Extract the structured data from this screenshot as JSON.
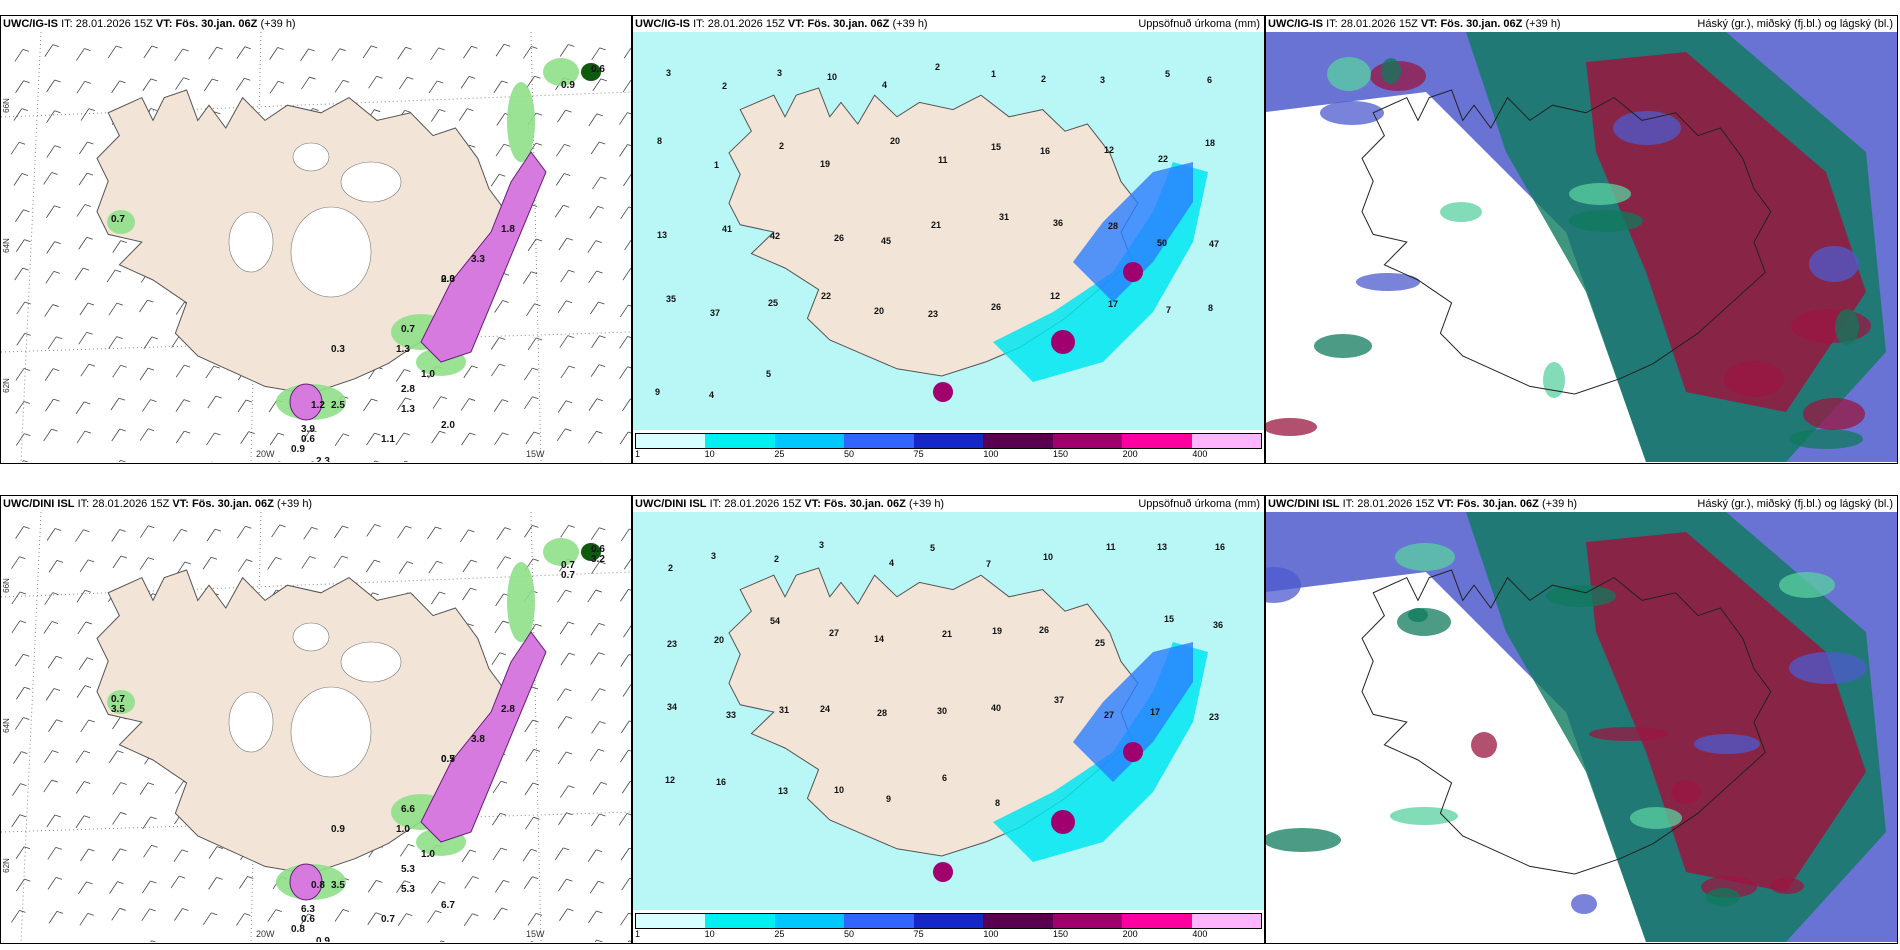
{
  "panels": [
    {
      "model": "UWC/IG-IS",
      "it_label": "IT:",
      "it_value": "28.01.2026 15Z",
      "vt_label": "VT: Fös. 30.jan. 06Z",
      "lead": "(+39 h)",
      "right_title": "",
      "type": "wind-precip",
      "lon_labels": [
        "20W",
        "15W"
      ],
      "lat_labels": [
        "66N",
        "64N",
        "62N"
      ],
      "values": [
        "0.9",
        "0.6",
        "0.7",
        "1.0",
        "1.2",
        "2.5",
        "3.9",
        "2.8",
        "2.0",
        "1.1",
        "0.9",
        "1.3",
        "0.7",
        "1.3",
        "0.3",
        "2.3",
        "0.6",
        "0.3",
        "2.0",
        "3.3",
        "1.8"
      ]
    },
    {
      "model": "UWC/IG-IS",
      "it_label": "IT:",
      "it_value": "28.01.2026 15Z",
      "vt_label": "VT: Fös. 30.jan. 06Z",
      "lead": "(+39 h)",
      "right_title": "Uppsöfnuð úrkoma (mm)",
      "type": "accum",
      "values": [
        "3",
        "2",
        "3",
        "10",
        "4",
        "2",
        "1",
        "2",
        "3",
        "5",
        "6",
        "8",
        "1",
        "2",
        "19",
        "20",
        "11",
        "15",
        "16",
        "12",
        "22",
        "18",
        "13",
        "41",
        "42",
        "26",
        "45",
        "21",
        "31",
        "36",
        "28",
        "50",
        "47",
        "35",
        "37",
        "25",
        "22",
        "20",
        "23",
        "26",
        "12",
        "17",
        "7",
        "8",
        "9",
        "4",
        "5"
      ]
    },
    {
      "model": "UWC/IG-IS",
      "it_label": "IT:",
      "it_value": "28.01.2026 15Z",
      "vt_label": "VT: Fös. 30.jan. 06Z",
      "lead": "(+39 h)",
      "right_title": "Háský (gr.), miðský (fj.bl.) og lágský (bl.)",
      "type": "clouds"
    },
    {
      "model": "UWC/DINI ISL",
      "it_label": "IT:",
      "it_value": "28.01.2026 15Z",
      "vt_label": "VT: Fös. 30.jan. 06Z",
      "lead": "(+39 h)",
      "right_title": "",
      "type": "wind-precip",
      "lon_labels": [
        "20W",
        "15W"
      ],
      "lat_labels": [
        "66N",
        "64N",
        "62N"
      ],
      "values": [
        "0.7",
        "0.6",
        "0.7",
        "1.0",
        "0.8",
        "3.5",
        "6.3",
        "5.3",
        "6.7",
        "0.7",
        "0.8",
        "5.3",
        "6.6",
        "1.0",
        "0.9",
        "0.9",
        "0.6",
        "0.5",
        "0.7",
        "3.8",
        "2.8",
        "0.7",
        "3.2",
        "3.5"
      ]
    },
    {
      "model": "UWC/DINI ISL",
      "it_label": "IT:",
      "it_value": "28.01.2026 15Z",
      "vt_label": "VT: Fös. 30.jan. 06Z",
      "lead": "(+39 h)",
      "right_title": "Uppsöfnuð úrkoma (mm)",
      "type": "accum",
      "values": [
        "2",
        "3",
        "2",
        "3",
        "4",
        "5",
        "7",
        "10",
        "11",
        "13",
        "16",
        "23",
        "20",
        "54",
        "27",
        "14",
        "21",
        "19",
        "26",
        "25",
        "15",
        "36",
        "34",
        "33",
        "31",
        "24",
        "28",
        "30",
        "40",
        "37",
        "27",
        "17",
        "23",
        "12",
        "16",
        "13",
        "10",
        "9",
        "6",
        "8"
      ]
    },
    {
      "model": "UWC/DINI ISL",
      "it_label": "IT:",
      "it_value": "28.01.2026 15Z",
      "vt_label": "VT: Fös. 30.jan. 06Z",
      "lead": "(+39 h)",
      "right_title": "Háský (gr.), miðský (fj.bl.) og lágský (bl.)",
      "type": "clouds"
    }
  ],
  "colorbar": {
    "ticks": [
      "1",
      "10",
      "25",
      "50",
      "75",
      "100",
      "150",
      "200",
      "400"
    ],
    "colors": [
      "#d8ffff",
      "#00f0f0",
      "#00c8ff",
      "#3264ff",
      "#1428c8",
      "#5a0050",
      "#a0006e",
      "#ff00a0",
      "#ffb4ff"
    ]
  },
  "colors": {
    "land": "#f2e4d6",
    "accum_bg": "#b9f6f6",
    "cloud_high": "#0f7a5c",
    "cloud_mid": "#9a1640",
    "cloud_low": "#4e5acd"
  }
}
